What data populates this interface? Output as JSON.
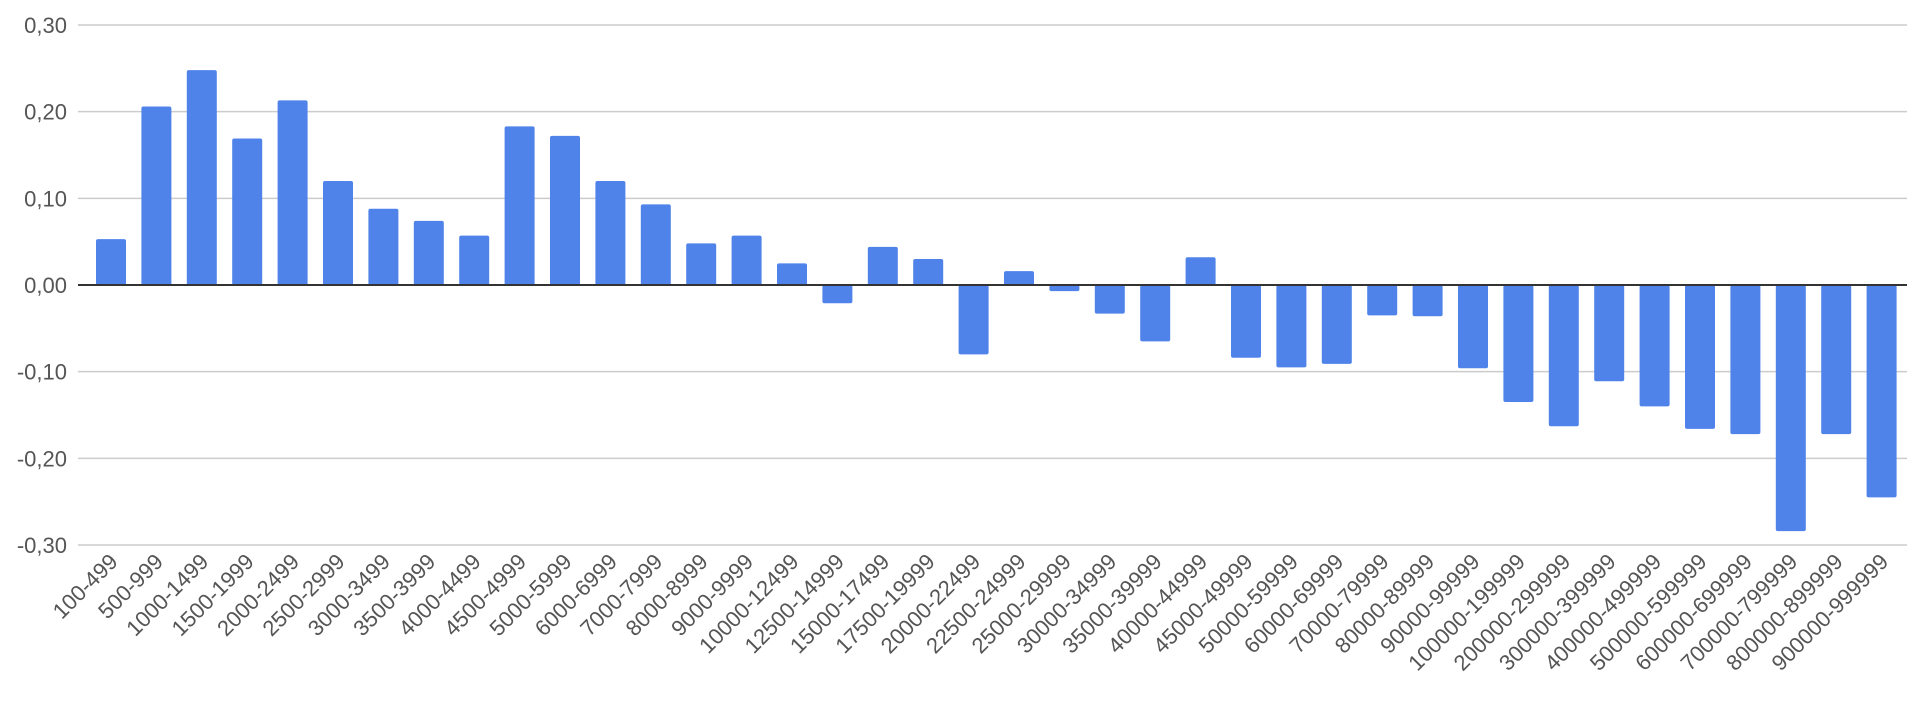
{
  "chart_data": {
    "type": "bar",
    "title": "",
    "xlabel": "",
    "ylabel": "",
    "ylim": [
      -0.3,
      0.3
    ],
    "yticks": [
      0.3,
      0.2,
      0.1,
      0.0,
      -0.1,
      -0.2,
      -0.3
    ],
    "ytick_labels": [
      "0,30",
      "0,20",
      "0,10",
      "0,00",
      "-0,10",
      "-0,20",
      "-0,30"
    ],
    "grid": true,
    "legend": "none",
    "bar_color": "#4f83ea",
    "categories": [
      "100-499",
      "500-999",
      "1000-1499",
      "1500-1999",
      "2000-2499",
      "2500-2999",
      "3000-3499",
      "3500-3999",
      "4000-4499",
      "4500-4999",
      "5000-5999",
      "6000-6999",
      "7000-7999",
      "8000-8999",
      "9000-9999",
      "10000-12499",
      "12500-14999",
      "15000-17499",
      "17500-19999",
      "20000-22499",
      "22500-24999",
      "25000-29999",
      "30000-34999",
      "35000-39999",
      "40000-44999",
      "45000-49999",
      "50000-59999",
      "60000-69999",
      "70000-79999",
      "80000-89999",
      "90000-99999",
      "100000-199999",
      "200000-299999",
      "300000-399999",
      "400000-499999",
      "500000-599999",
      "600000-699999",
      "700000-799999",
      "800000-899999",
      "900000-999999"
    ],
    "values": [
      0.053,
      0.206,
      0.248,
      0.169,
      0.213,
      0.12,
      0.088,
      0.074,
      0.057,
      0.183,
      0.172,
      0.12,
      0.093,
      0.048,
      0.057,
      0.025,
      -0.021,
      0.044,
      0.03,
      -0.08,
      0.016,
      -0.007,
      -0.033,
      -0.065,
      0.032,
      -0.084,
      -0.095,
      -0.091,
      -0.035,
      -0.036,
      -0.096,
      -0.135,
      -0.163,
      -0.111,
      -0.14,
      -0.166,
      -0.172,
      -0.284,
      -0.172,
      -0.245
    ]
  }
}
